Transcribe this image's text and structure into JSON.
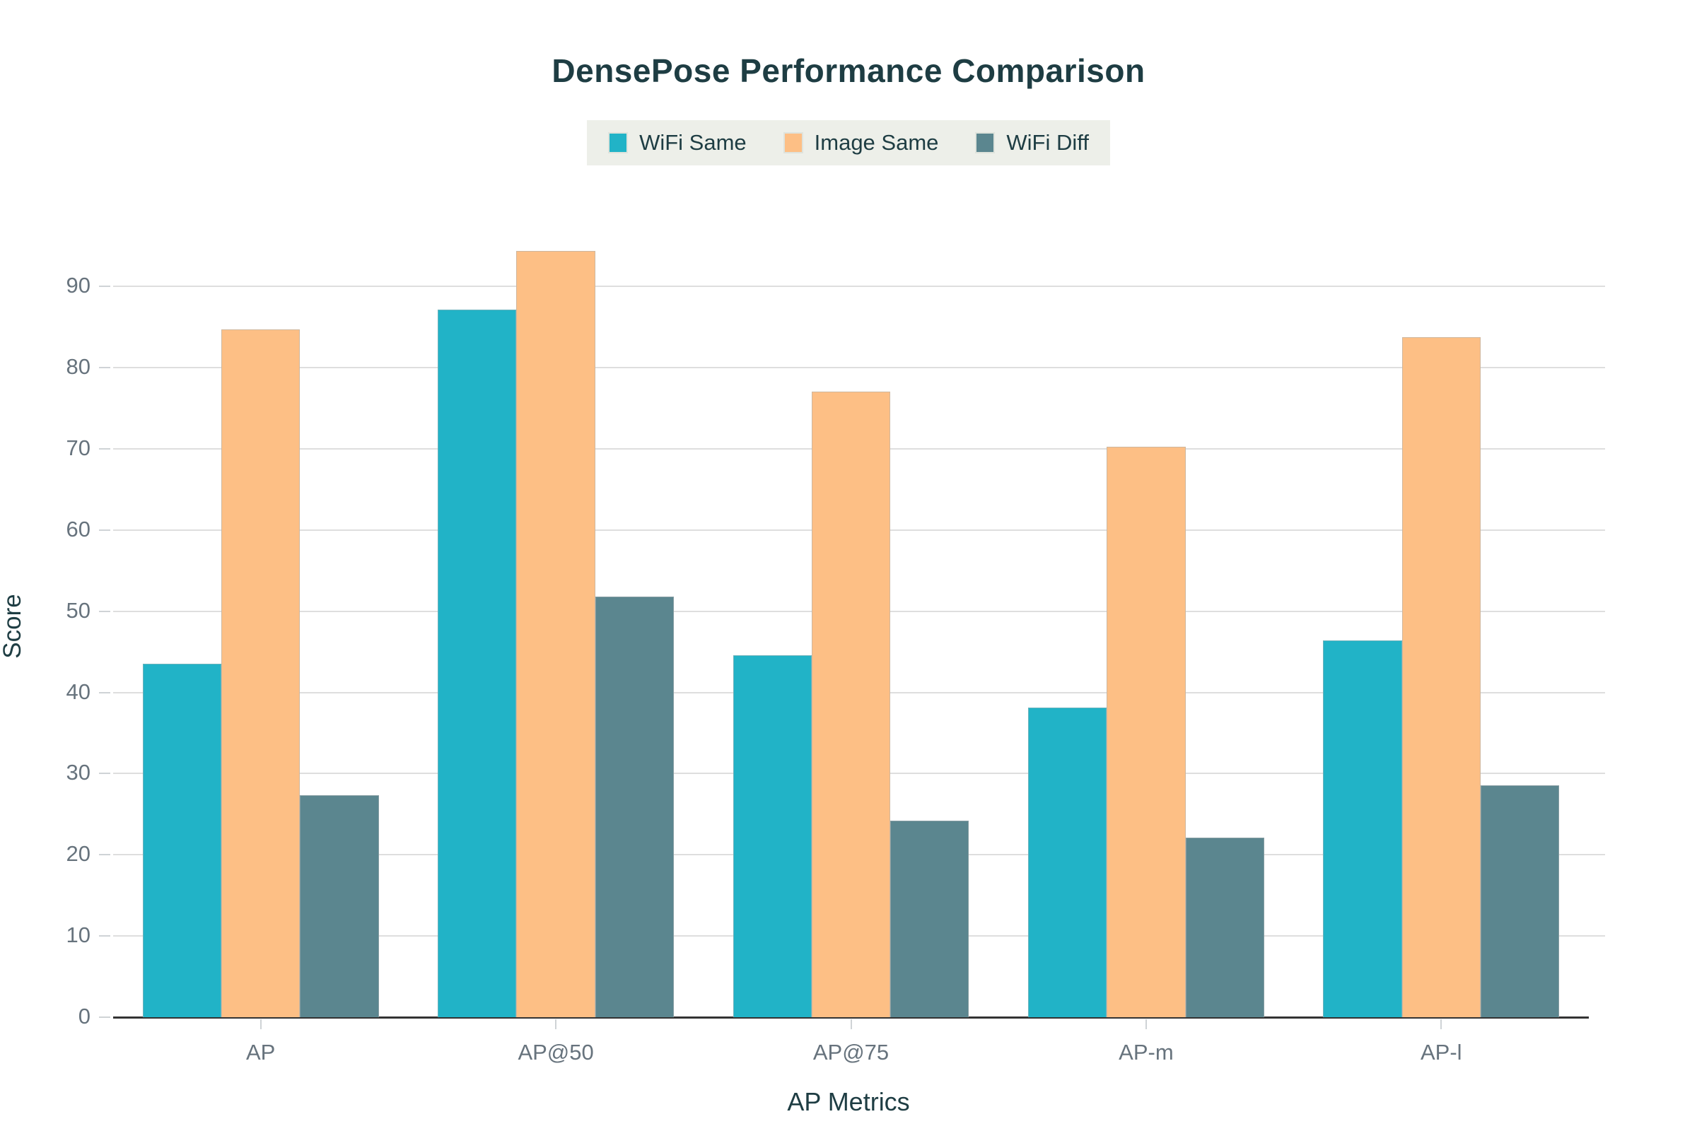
{
  "title": "DensePose Performance Comparison",
  "chart_data": {
    "type": "bar",
    "title": "DensePose Performance Comparison",
    "categories": [
      "AP",
      "AP@50",
      "AP@75",
      "AP-m",
      "AP-l"
    ],
    "series": [
      {
        "name": "WiFi Same",
        "color": "#21b3c7",
        "values": [
          43.5,
          87.2,
          44.6,
          38.1,
          46.4
        ]
      },
      {
        "name": "Image Same",
        "color": "#fdbf85",
        "values": [
          84.7,
          94.4,
          77.1,
          70.3,
          83.8
        ]
      },
      {
        "name": "WiFi Diff",
        "color": "#5b868f",
        "values": [
          27.3,
          51.8,
          24.2,
          22.1,
          28.6
        ]
      }
    ],
    "xlabel": "AP Metrics",
    "ylabel": "Score",
    "yticks": [
      0,
      10,
      20,
      30,
      40,
      50,
      60,
      70,
      80,
      90
    ],
    "ylim": [
      0,
      97
    ],
    "grid": true,
    "legend_position": "top-center"
  },
  "colors": {
    "accent_teal": "#21b3c7",
    "accent_orange": "#fdbf85",
    "accent_slate": "#5b868f",
    "heading_text": "#1e3d43",
    "tick_text": "#67737d",
    "gridline": "#dedede",
    "axis_line": "#333333",
    "legend_background": "#edefe9"
  }
}
